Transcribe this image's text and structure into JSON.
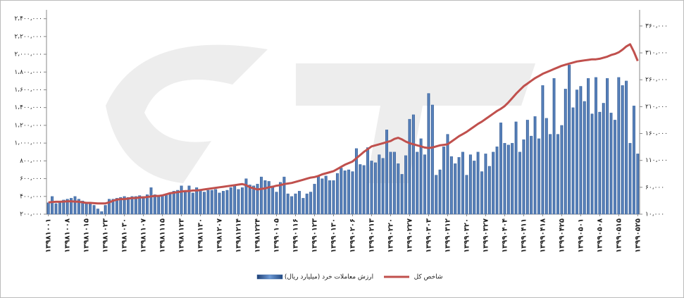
{
  "chart_data": {
    "type": "bar",
    "categories": [
      "۱۳۹۸۱۰۰۱",
      null,
      null,
      null,
      null,
      "۱۳۹۸۱۰۰۸",
      null,
      null,
      null,
      null,
      "۱۳۹۸۱۰۱۵",
      null,
      null,
      null,
      null,
      "۱۳۹۸۱۰۲۳",
      null,
      null,
      null,
      null,
      "۱۳۹۸۱۰۳۰",
      null,
      null,
      null,
      null,
      "۱۳۹۸۱۱۰۷",
      null,
      null,
      null,
      null,
      "۱۳۹۸۱۱۱۵",
      null,
      null,
      null,
      null,
      "۱۳۹۸۱۱۲۳",
      null,
      null,
      null,
      null,
      "۱۳۹۸۱۱۳۰",
      null,
      null,
      null,
      null,
      "۱۳۹۸۱۲۰۷",
      null,
      null,
      null,
      null,
      "۱۳۹۸۱۲۱۴",
      null,
      null,
      null,
      null,
      "۱۳۹۸۱۲۲۴",
      null,
      null,
      null,
      null,
      "۱۳۹۹۰۱۰۵",
      null,
      null,
      null,
      null,
      "۱۳۹۹۰۱۱۶",
      null,
      null,
      null,
      null,
      "۱۳۹۹۰۱۲۳",
      null,
      null,
      null,
      null,
      "۱۳۹۹۰۱۳۰",
      null,
      null,
      null,
      null,
      "۱۳۹۹۰۲۰۶",
      null,
      null,
      null,
      null,
      "۱۳۹۹۰۲۱۳",
      null,
      null,
      null,
      null,
      "۱۳۹۹۰۲۲۰",
      null,
      null,
      null,
      null,
      "۱۳۹۹۰۲۲۷",
      null,
      null,
      null,
      null,
      "۱۳۹۹۰۳۰۳",
      null,
      null,
      null,
      null,
      "۱۳۹۹۰۳۱۲",
      null,
      null,
      null,
      null,
      "۱۳۹۹۰۳۲۰",
      null,
      null,
      null,
      null,
      "۱۳۹۹۰۳۲۷",
      null,
      null,
      null,
      null,
      "۱۳۹۹۰۴۰۴",
      null,
      null,
      null,
      null,
      "۱۳۹۹۰۴۱۱",
      null,
      null,
      null,
      null,
      "۱۳۹۹۰۴۱۸",
      null,
      null,
      null,
      null,
      "۱۳۹۹۰۴۲۵",
      null,
      null,
      null,
      null,
      "۱۳۹۹۰۵۰۱",
      null,
      null,
      null,
      null,
      "۱۳۹۹۰۵۰۸",
      null,
      null,
      null,
      null,
      "۱۳۹۹۰۵۱۵",
      null,
      null,
      null,
      null,
      "۱۳۹۹۰۵۲۵"
    ],
    "series": [
      {
        "name": "ارزش معاملات خرد (میلیارد ریال)",
        "type": "bar",
        "color": "#3a6aa8",
        "values": [
          330000,
          400000,
          320000,
          340000,
          360000,
          370000,
          380000,
          400000,
          370000,
          350000,
          330000,
          330000,
          300000,
          260000,
          230000,
          300000,
          370000,
          370000,
          380000,
          390000,
          400000,
          390000,
          400000,
          400000,
          410000,
          400000,
          420000,
          500000,
          420000,
          410000,
          420000,
          430000,
          440000,
          460000,
          470000,
          520000,
          450000,
          520000,
          440000,
          500000,
          460000,
          450000,
          470000,
          470000,
          480000,
          440000,
          460000,
          470000,
          500000,
          530000,
          480000,
          500000,
          600000,
          530000,
          520000,
          540000,
          620000,
          580000,
          570000,
          520000,
          450000,
          560000,
          620000,
          430000,
          400000,
          430000,
          460000,
          380000,
          430000,
          450000,
          540000,
          630000,
          600000,
          630000,
          580000,
          580000,
          660000,
          720000,
          690000,
          700000,
          680000,
          940000,
          760000,
          750000,
          950000,
          800000,
          780000,
          870000,
          830000,
          1150000,
          900000,
          900000,
          770000,
          650000,
          860000,
          1270000,
          1320000,
          900000,
          1050000,
          870000,
          1560000,
          1430000,
          640000,
          700000,
          960000,
          1100000,
          850000,
          770000,
          840000,
          900000,
          640000,
          870000,
          800000,
          900000,
          680000,
          880000,
          740000,
          900000,
          960000,
          1230000,
          1000000,
          980000,
          1000000,
          1240000,
          900000,
          1040000,
          1260000,
          1080000,
          1300000,
          1050000,
          1650000,
          1280000,
          1100000,
          1730000,
          1100000,
          1200000,
          1610000,
          1880000,
          1400000,
          1600000,
          1640000,
          1470000,
          1730000,
          1330000,
          1740000,
          1350000,
          1450000,
          1730000,
          1340000,
          1260000,
          1740000,
          1650000,
          1700000,
          1000000,
          1420000,
          880000
        ]
      },
      {
        "name": "شاخص کل",
        "type": "line",
        "axis": "y2",
        "color": "#c0504d",
        "values": [
          32000,
          32500,
          33000,
          33000,
          33500,
          34000,
          34000,
          33500,
          33000,
          32000,
          31000,
          31000,
          30500,
          30000,
          30000,
          30000,
          32000,
          35000,
          37000,
          38000,
          38000,
          39000,
          40000,
          40000,
          41000,
          41000,
          42000,
          43000,
          44000,
          44000,
          45000,
          47000,
          49000,
          50000,
          51000,
          52000,
          53000,
          53000,
          54000,
          54000,
          55000,
          56000,
          57000,
          58000,
          59000,
          60000,
          61000,
          62000,
          63000,
          64000,
          65000,
          66000,
          64000,
          60000,
          58000,
          56000,
          57000,
          58000,
          60000,
          61000,
          63000,
          64000,
          66000,
          67000,
          68000,
          70000,
          72000,
          74000,
          76000,
          78000,
          79000,
          81000,
          84000,
          86000,
          88000,
          90000,
          94000,
          98000,
          102000,
          105000,
          108000,
          114000,
          120000,
          126000,
          131000,
          136000,
          138000,
          140000,
          142000,
          144000,
          146000,
          150000,
          152000,
          149000,
          145000,
          142000,
          140000,
          138000,
          136000,
          134000,
          133000,
          134000,
          136000,
          138000,
          139000,
          140000,
          145000,
          150000,
          155000,
          159000,
          163000,
          168000,
          173000,
          178000,
          182000,
          187000,
          192000,
          197000,
          202000,
          206000,
          211000,
          218000,
          226000,
          234000,
          241000,
          248000,
          253000,
          258000,
          263000,
          267000,
          271000,
          274000,
          277000,
          280000,
          283000,
          286000,
          288000,
          290000,
          292000,
          294000,
          295000,
          296000,
          297000,
          298000,
          298000,
          299000,
          301000,
          303000,
          306000,
          308000,
          311000,
          316000,
          322000,
          326000,
          312000,
          295000
        ]
      }
    ],
    "ylim": [
      200000,
      2500000
    ],
    "yticks": [
      {
        "value": 200000,
        "label": "۲۰۰،۰۰۰"
      },
      {
        "value": 400000,
        "label": "۴۰۰،۰۰۰"
      },
      {
        "value": 600000,
        "label": "۶۰۰،۰۰۰"
      },
      {
        "value": 800000,
        "label": "۸۰۰،۰۰۰"
      },
      {
        "value": 1000000,
        "label": "۱،۰۰۰،۰۰۰"
      },
      {
        "value": 1200000,
        "label": "۱،۲۰۰،۰۰۰"
      },
      {
        "value": 1400000,
        "label": "۱،۴۰۰،۰۰۰"
      },
      {
        "value": 1600000,
        "label": "۱،۶۰۰،۰۰۰"
      },
      {
        "value": 1800000,
        "label": "۱،۸۰۰،۰۰۰"
      },
      {
        "value": 2000000,
        "label": "۲،۰۰۰،۰۰۰"
      },
      {
        "value": 2200000,
        "label": "۲،۲۰۰،۰۰۰"
      },
      {
        "value": 2400000,
        "label": "۲،۴۰۰،۰۰۰"
      }
    ],
    "y2lim": [
      10000,
      390000
    ],
    "y2ticks": [
      {
        "value": 10000,
        "label": "۱۰،۰۰۰"
      },
      {
        "value": 60000,
        "label": "۶۰،۰۰۰"
      },
      {
        "value": 110000,
        "label": "۱۱۰،۰۰۰"
      },
      {
        "value": 160000,
        "label": "۱۶۰،۰۰۰"
      },
      {
        "value": 210000,
        "label": "۲۱۰،۰۰۰"
      },
      {
        "value": 260000,
        "label": "۲۶۰،۰۰۰"
      },
      {
        "value": 310000,
        "label": "۳۱۰،۰۰۰"
      },
      {
        "value": 360000,
        "label": "۳۶۰،۰۰۰"
      }
    ],
    "legend": "bottom"
  }
}
